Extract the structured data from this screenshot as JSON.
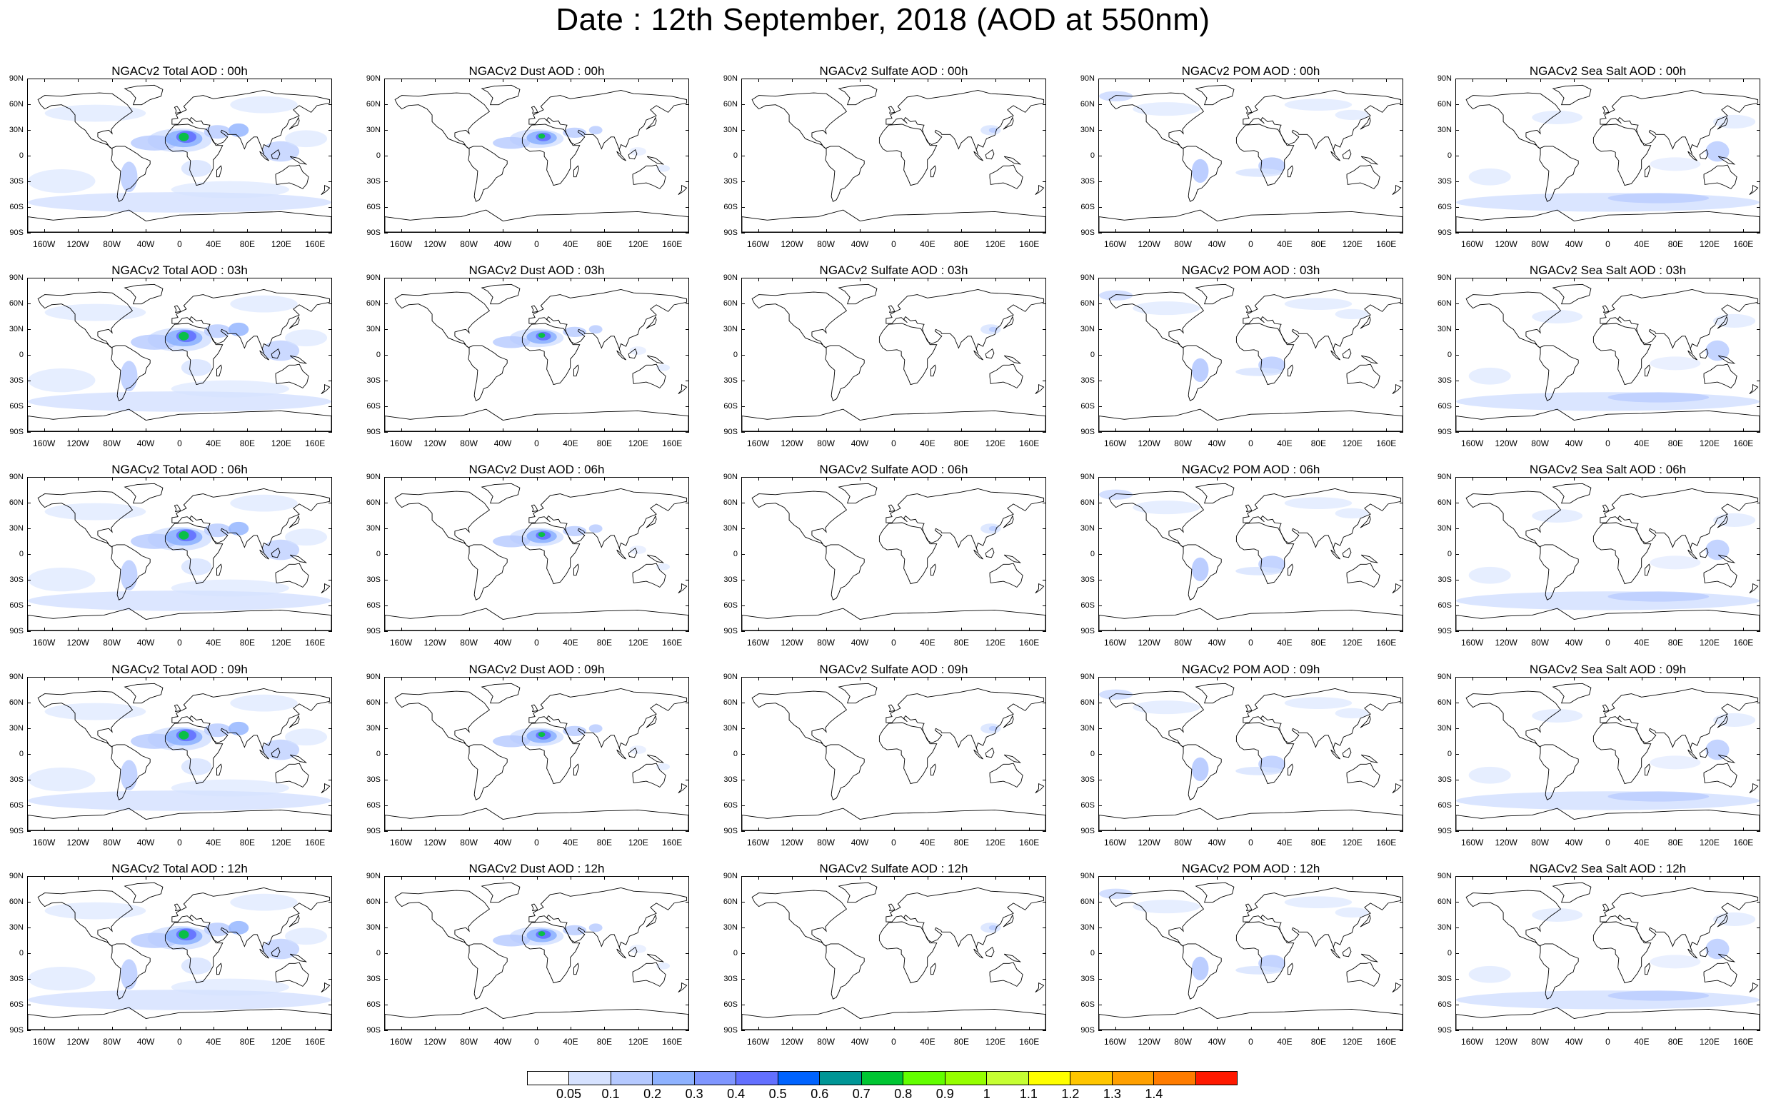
{
  "title": "Date : 12th September, 2018 (AOD at 550nm)",
  "lat_labels": [
    "90N",
    "60N",
    "30N",
    "0",
    "30S",
    "60S",
    "90S"
  ],
  "lon_labels": [
    "160W",
    "120W",
    "80W",
    "40W",
    "0",
    "40E",
    "80E",
    "120E",
    "160E"
  ],
  "panels": [
    [
      "NGACv2 Total AOD : 00h",
      "NGACv2 Dust AOD : 00h",
      "NGACv2 Sulfate AOD : 00h",
      "NGACv2 POM AOD : 00h",
      "NGACv2 Sea Salt AOD : 00h"
    ],
    [
      "NGACv2 Total AOD : 03h",
      "NGACv2 Dust AOD : 03h",
      "NGACv2 Sulfate AOD : 03h",
      "NGACv2 POM AOD : 03h",
      "NGACv2 Sea Salt AOD : 03h"
    ],
    [
      "NGACv2 Total AOD : 06h",
      "NGACv2 Dust AOD : 06h",
      "NGACv2 Sulfate AOD : 06h",
      "NGACv2 POM AOD : 06h",
      "NGACv2 Sea Salt AOD : 06h"
    ],
    [
      "NGACv2 Total AOD : 09h",
      "NGACv2 Dust AOD : 09h",
      "NGACv2 Sulfate AOD : 09h",
      "NGACv2 POM AOD : 09h",
      "NGACv2 Sea Salt  AOD : 09h"
    ],
    [
      "NGACv2 Total AOD : 12h",
      "NGACv2 Dust AOD : 12h",
      "NGACv2 Sulfate AOD : 12h",
      "NGACv2 POM  AOD : 12h",
      "NGACv2 Sea Salt  AOD : 12h"
    ]
  ],
  "colorbar": {
    "labels": [
      "0.05",
      "0.1",
      "0.2",
      "0.3",
      "0.4",
      "0.5",
      "0.6",
      "0.7",
      "0.8",
      "0.9",
      "1",
      "1.1",
      "1.2",
      "1.3",
      "1.4"
    ],
    "colors": [
      "#ffffff",
      "#d6e2ff",
      "#b5c9ff",
      "#8eb2ff",
      "#7f96ff",
      "#6370ff",
      "#0063ff",
      "#009696",
      "#00c633",
      "#63ff00",
      "#96ff00",
      "#c6ff33",
      "#ffff00",
      "#ffc600",
      "#ffa000",
      "#ff7c00",
      "#ff1900"
    ]
  }
}
